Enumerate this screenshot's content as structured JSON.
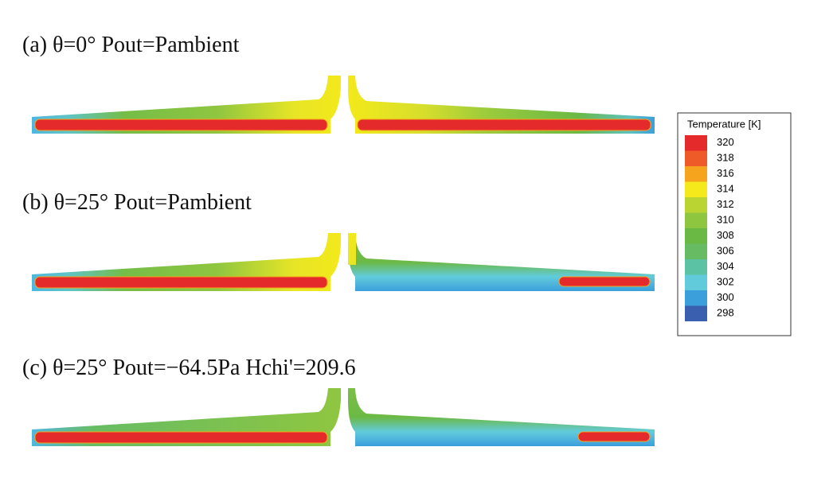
{
  "panels": [
    {
      "title": "(a) θ=0° Pout=Pambient"
    },
    {
      "title": "(b) θ=25° Pout=Pambient"
    },
    {
      "title": "(c) θ=25° Pout=−64.5Pa Hchi'=209.6"
    }
  ],
  "legend": {
    "title": "Temperature [K]",
    "labels": [
      320,
      318,
      316,
      314,
      312,
      310,
      308,
      306,
      304,
      302,
      300,
      298
    ],
    "colors": [
      "#e42a2a",
      "#ef5b28",
      "#f6a31d",
      "#f3e91b",
      "#bad532",
      "#8fc640",
      "#6bb945",
      "#67bc63",
      "#5cc2a4",
      "#62cbdb",
      "#3b9fdc",
      "#3a5fae"
    ]
  }
}
